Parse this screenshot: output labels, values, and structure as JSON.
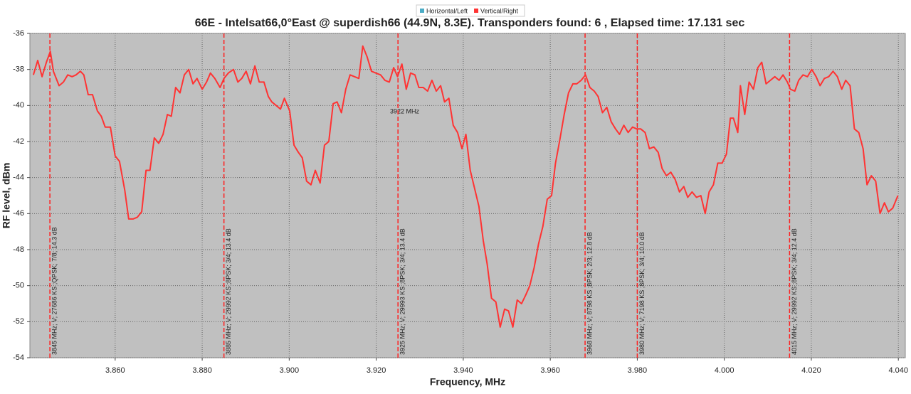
{
  "chart_data": {
    "type": "line",
    "title": "66E - Intelsat66,0°East @ superdish66 (44.9N, 8.3E). Transponders found: 6 , Elapsed time: 17.131 sec",
    "x_label": "Frequency, MHz",
    "y_label": "RF level, dBm",
    "xlim": [
      3.8404,
      4.0416
    ],
    "ylim": [
      -54,
      -36
    ],
    "xticks": [
      {
        "value": 3.86,
        "label": "3.860"
      },
      {
        "value": 3.88,
        "label": "3.880"
      },
      {
        "value": 3.9,
        "label": "3.900"
      },
      {
        "value": 3.92,
        "label": "3.920"
      },
      {
        "value": 3.94,
        "label": "3.940"
      },
      {
        "value": 3.96,
        "label": "3.960"
      },
      {
        "value": 3.98,
        "label": "3.980"
      },
      {
        "value": 4.0,
        "label": "4.000"
      },
      {
        "value": 4.02,
        "label": "4.020"
      },
      {
        "value": 4.04,
        "label": "4.040"
      }
    ],
    "yticks": [
      -36,
      -38,
      -40,
      -42,
      -44,
      -46,
      -48,
      -50,
      -52,
      -54
    ],
    "grid": true,
    "series": [
      {
        "name": "Horizontal/Left",
        "color": "#4bacc6",
        "x": [],
        "values": []
      },
      {
        "name": "Vertical/Right",
        "color": "#ff3333",
        "x": [
          3.8412,
          3.8422,
          3.8432,
          3.8442,
          3.8451,
          3.8458,
          3.8471,
          3.8481,
          3.8491,
          3.8501,
          3.851,
          3.852,
          3.8528,
          3.8538,
          3.8548,
          3.8559,
          3.8568,
          3.8577,
          3.8589,
          3.86,
          3.861,
          3.8622,
          3.8631,
          3.8641,
          3.8651,
          3.8661,
          3.8671,
          3.868,
          3.869,
          3.87,
          3.871,
          3.872,
          3.8729,
          3.8739,
          3.8749,
          3.8759,
          3.8769,
          3.8779,
          3.8788,
          3.88,
          3.881,
          3.8819,
          3.8829,
          3.8841,
          3.885,
          3.886,
          3.8872,
          3.8882,
          3.8891,
          3.8901,
          3.8911,
          3.8921,
          3.8931,
          3.8942,
          3.8952,
          3.896,
          3.897,
          3.898,
          3.8989,
          3.9001,
          3.9011,
          3.9021,
          3.903,
          3.904,
          3.905,
          3.906,
          3.9071,
          3.9081,
          3.9091,
          3.9101,
          3.911,
          3.912,
          3.913,
          3.914,
          3.915,
          3.916,
          3.9169,
          3.9179,
          3.9189,
          3.9199,
          3.921,
          3.922,
          3.923,
          3.924,
          3.9249,
          3.9259,
          3.9269,
          3.9279,
          3.9289,
          3.9298,
          3.9308,
          3.9318,
          3.9328,
          3.9338,
          3.9348,
          3.9357,
          3.9367,
          3.9377,
          3.9387,
          3.9397,
          3.9406,
          3.9416,
          3.9426,
          3.9436,
          3.9446,
          3.9455,
          3.9465,
          3.9475,
          3.9485,
          3.9495,
          3.9504,
          3.9514,
          3.9524,
          3.9534,
          3.9544,
          3.9553,
          3.9563,
          3.9573,
          3.9583,
          3.9593,
          3.9603,
          3.9612,
          3.9622,
          3.9632,
          3.9642,
          3.9652,
          3.9661,
          3.9671,
          3.9681,
          3.9691,
          3.9701,
          3.971,
          3.972,
          3.973,
          3.974,
          3.975,
          3.9759,
          3.9769,
          3.9779,
          3.9789,
          3.9799,
          3.9808,
          3.9818,
          3.9828,
          3.9838,
          3.9848,
          3.9857,
          3.9867,
          3.9877,
          3.9887,
          3.9897,
          3.9907,
          3.9916,
          3.9926,
          3.9936,
          3.9946,
          3.9956,
          3.9965,
          3.9975,
          3.9985,
          3.9995,
          4.0005,
          4.0014,
          4.0021,
          4.0031,
          4.0037,
          4.0047,
          4.0057,
          4.0067,
          4.0077,
          4.0086,
          4.0096,
          4.0106,
          4.0116,
          4.0126,
          4.0135,
          4.0145,
          4.0152,
          4.0162,
          4.0171,
          4.0181,
          4.0191,
          4.0201,
          4.0211,
          4.022,
          4.023,
          4.024,
          4.025,
          4.026,
          4.027,
          4.0279,
          4.0289,
          4.0299,
          4.0309,
          4.0319,
          4.0328,
          4.0338,
          4.0348,
          4.0358,
          4.0368,
          4.0377,
          4.0387,
          4.0399
        ],
        "values": [
          -38.3,
          -37.5,
          -38.4,
          -37.6,
          -37.0,
          -38.1,
          -38.9,
          -38.7,
          -38.3,
          -38.4,
          -38.3,
          -38.1,
          -38.3,
          -39.4,
          -39.4,
          -40.3,
          -40.6,
          -41.2,
          -41.2,
          -42.8,
          -43.1,
          -44.7,
          -46.3,
          -46.3,
          -46.2,
          -45.9,
          -43.6,
          -43.6,
          -41.8,
          -42.1,
          -41.6,
          -40.5,
          -40.6,
          -39.0,
          -39.3,
          -38.3,
          -38.0,
          -38.8,
          -38.5,
          -39.1,
          -38.7,
          -38.2,
          -38.5,
          -39.0,
          -38.5,
          -38.2,
          -38.0,
          -38.7,
          -38.5,
          -38.1,
          -38.8,
          -37.8,
          -38.7,
          -38.7,
          -39.5,
          -39.8,
          -40.0,
          -40.2,
          -39.6,
          -40.3,
          -42.2,
          -42.6,
          -42.9,
          -44.2,
          -44.4,
          -43.6,
          -44.3,
          -42.2,
          -42.0,
          -39.9,
          -39.8,
          -40.4,
          -39.1,
          -38.3,
          -38.4,
          -38.5,
          -36.7,
          -37.3,
          -38.1,
          -38.2,
          -38.3,
          -38.6,
          -38.7,
          -37.9,
          -38.4,
          -37.7,
          -39.1,
          -38.2,
          -38.3,
          -39.0,
          -39.0,
          -39.2,
          -38.6,
          -39.2,
          -38.9,
          -39.8,
          -39.6,
          -41.1,
          -41.5,
          -42.4,
          -41.6,
          -43.6,
          -44.6,
          -45.6,
          -47.5,
          -48.8,
          -50.7,
          -50.9,
          -52.3,
          -51.3,
          -51.4,
          -52.3,
          -50.8,
          -51.0,
          -50.5,
          -50.0,
          -49.0,
          -47.7,
          -46.7,
          -45.2,
          -45.0,
          -43.2,
          -41.9,
          -40.5,
          -39.3,
          -38.8,
          -38.8,
          -38.6,
          -38.3,
          -39.0,
          -39.2,
          -39.5,
          -40.4,
          -40.1,
          -40.9,
          -41.3,
          -41.6,
          -41.1,
          -41.5,
          -41.2,
          -41.3,
          -41.3,
          -41.5,
          -42.4,
          -42.3,
          -42.6,
          -43.5,
          -43.9,
          -43.7,
          -44.1,
          -44.8,
          -44.5,
          -45.1,
          -44.8,
          -45.1,
          -45.0,
          -46.0,
          -44.8,
          -44.4,
          -43.2,
          -43.2,
          -42.7,
          -40.7,
          -40.7,
          -41.5,
          -38.9,
          -40.5,
          -38.7,
          -39.1,
          -37.9,
          -37.6,
          -38.8,
          -38.6,
          -38.4,
          -38.6,
          -38.3,
          -38.7,
          -39.1,
          -39.2,
          -38.6,
          -38.3,
          -38.4,
          -38.0,
          -38.4,
          -38.9,
          -38.5,
          -38.4,
          -38.1,
          -38.4,
          -39.1,
          -38.6,
          -38.9,
          -41.3,
          -41.5,
          -42.4,
          -44.4,
          -43.9,
          -44.2,
          -46.0,
          -45.4,
          -45.9,
          -45.7,
          -45.0
        ]
      }
    ],
    "markers": [
      {
        "x": 3.845,
        "label": "3845 MHz; V; 27686 KS ;QPSK; 7/8; 14.3 dB"
      },
      {
        "x": 3.885,
        "label": "3885 MHz; V; 29992 KS ;8PSK; 3/4; 13.4 dB"
      },
      {
        "x": 3.925,
        "label": "3925 MHz; V; 29993 KS ;8PSK; 3/4; 13.4 dB"
      },
      {
        "x": 3.968,
        "label": "3968 MHz; V; 8798 KS ;8PSK; 2/3; 12.8 dB"
      },
      {
        "x": 3.98,
        "label": "3980 MHz; V; 7198 KS ;8PSK; 3/4; 10.0 dB"
      },
      {
        "x": 4.015,
        "label": "4015 MHz; V; 29992 KS ;8PSK; 3/4; 12.4 dB"
      }
    ],
    "marker_color": "#ff2020",
    "annotations": [
      {
        "text": "3922 MHz"
      }
    ]
  }
}
